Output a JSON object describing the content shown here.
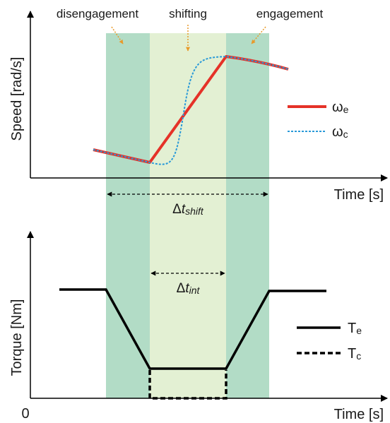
{
  "phases": {
    "disengagement": "disengagement",
    "shifting": "shifting",
    "engagement": "engagement"
  },
  "top_plot": {
    "ylabel": "Speed [rad/s]",
    "xlabel": "Time [s]",
    "legend": [
      {
        "symbol": "ω",
        "sub": "e",
        "style": "solid",
        "color": "#e53228"
      },
      {
        "symbol": "ω",
        "sub": "c",
        "style": "dotted",
        "color": "#2a9ad8"
      }
    ]
  },
  "bottom_plot": {
    "ylabel": "Torque  [Nm]",
    "xlabel": "Time [s]",
    "origin": "0",
    "legend": [
      {
        "symbol": "T",
        "sub": "e",
        "style": "solid",
        "color": "#000000"
      },
      {
        "symbol": "T",
        "sub": "c",
        "style": "dashed",
        "color": "#000000"
      }
    ]
  },
  "intervals": {
    "shift": {
      "delta": "Δ",
      "var": "t",
      "sub": "shift"
    },
    "int": {
      "delta": "Δ",
      "var": "t",
      "sub": "int"
    }
  },
  "colors": {
    "band_outer": "#b2dcc6",
    "band_inner": "#e3f0d3",
    "phase_arrow": "#e89a2a",
    "engine_speed": "#e53228",
    "clutch_speed": "#2a9ad8"
  }
}
